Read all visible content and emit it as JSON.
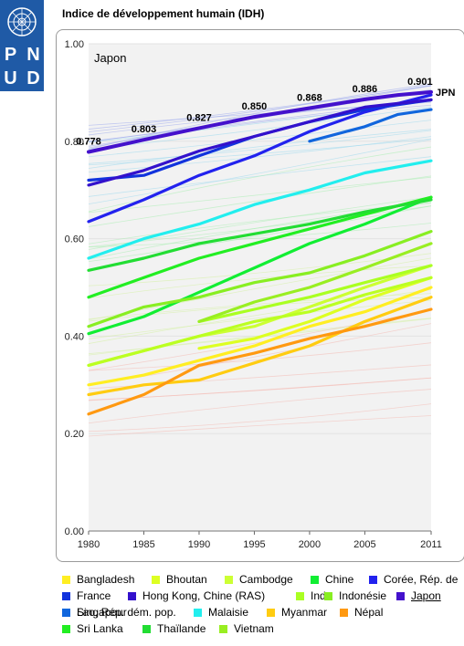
{
  "header": {
    "logo_letters": [
      "P",
      "N",
      "U",
      "D"
    ],
    "title": "Indice de développement humain (IDH)"
  },
  "chart_data": {
    "type": "line",
    "panel_label": "Japon",
    "ylim": [
      0,
      1
    ],
    "xlim": [
      1980,
      2011
    ],
    "x_ticks": [
      "1980",
      "1985",
      "1990",
      "1995",
      "2000",
      "2005",
      "2011"
    ],
    "y_ticks": [
      "0.00",
      "0.20",
      "0.40",
      "0.60",
      "0.80",
      "1.00"
    ],
    "highlight": {
      "series": "Japon",
      "end_label": "JPN",
      "point_labels": [
        {
          "x": 1980,
          "y": 0.778,
          "text": "0.778"
        },
        {
          "x": 1985,
          "y": 0.803,
          "text": "0.803"
        },
        {
          "x": 1990,
          "y": 0.827,
          "text": "0.827"
        },
        {
          "x": 1995,
          "y": 0.85,
          "text": "0.850"
        },
        {
          "x": 2000,
          "y": 0.868,
          "text": "0.868"
        },
        {
          "x": 2005,
          "y": 0.886,
          "text": "0.886"
        },
        {
          "x": 2010,
          "y": 0.901,
          "text": "0.901"
        }
      ]
    },
    "series": [
      {
        "name": "Bangladesh",
        "color": "#ffee22",
        "points": [
          [
            1980,
            0.3
          ],
          [
            1985,
            0.32
          ],
          [
            1990,
            0.35
          ],
          [
            1995,
            0.38
          ],
          [
            2000,
            0.42
          ],
          [
            2005,
            0.45
          ],
          [
            2011,
            0.5
          ]
        ]
      },
      {
        "name": "Bhoutan",
        "color": "#ddff22",
        "points": [
          [
            1990,
            0.375
          ],
          [
            1995,
            0.395
          ],
          [
            2000,
            0.43
          ],
          [
            2005,
            0.475
          ],
          [
            2011,
            0.52
          ]
        ]
      },
      {
        "name": "Cambodge",
        "color": "#ccff33",
        "points": [
          [
            1980,
            0.34
          ],
          [
            1985,
            0.37
          ],
          [
            1990,
            0.4
          ],
          [
            1995,
            0.42
          ],
          [
            2000,
            0.46
          ],
          [
            2005,
            0.5
          ],
          [
            2011,
            0.545
          ]
        ]
      },
      {
        "name": "Chine",
        "color": "#11ee33",
        "points": [
          [
            1980,
            0.405
          ],
          [
            1985,
            0.44
          ],
          [
            1990,
            0.49
          ],
          [
            1995,
            0.54
          ],
          [
            2000,
            0.59
          ],
          [
            2005,
            0.63
          ],
          [
            2011,
            0.685
          ]
        ]
      },
      {
        "name": "Corée, Rép. de",
        "color": "#2222ee",
        "points": [
          [
            1980,
            0.635
          ],
          [
            1985,
            0.68
          ],
          [
            1990,
            0.73
          ],
          [
            1995,
            0.77
          ],
          [
            2000,
            0.82
          ],
          [
            2005,
            0.86
          ],
          [
            2011,
            0.895
          ]
        ]
      },
      {
        "name": "France",
        "color": "#1133dd",
        "points": [
          [
            1980,
            0.72
          ],
          [
            1985,
            0.73
          ],
          [
            1990,
            0.77
          ],
          [
            1995,
            0.81
          ],
          [
            2000,
            0.84
          ],
          [
            2005,
            0.865
          ],
          [
            2011,
            0.885
          ]
        ]
      },
      {
        "name": "Hong Kong, Chine (RAS)",
        "color": "#3311cc",
        "points": [
          [
            1980,
            0.71
          ],
          [
            1985,
            0.74
          ],
          [
            1990,
            0.78
          ],
          [
            1995,
            0.81
          ],
          [
            2000,
            0.84
          ],
          [
            2005,
            0.87
          ],
          [
            2011,
            0.885
          ]
        ]
      },
      {
        "name": "Inde",
        "color": "#aaff22",
        "points": [
          [
            1990,
            0.43
          ],
          [
            1995,
            0.455
          ],
          [
            2000,
            0.48
          ],
          [
            2005,
            0.51
          ],
          [
            2011,
            0.545
          ]
        ]
      },
      {
        "name": "Indonésie",
        "color": "#88ee22",
        "points": [
          [
            1980,
            0.42
          ],
          [
            1985,
            0.46
          ],
          [
            1990,
            0.48
          ],
          [
            1995,
            0.51
          ],
          [
            2000,
            0.53
          ],
          [
            2005,
            0.565
          ],
          [
            2011,
            0.615
          ]
        ]
      },
      {
        "name": "Japon",
        "color": "#4411cc",
        "points": [
          [
            1980,
            0.778
          ],
          [
            1985,
            0.803
          ],
          [
            1990,
            0.827
          ],
          [
            1995,
            0.85
          ],
          [
            2000,
            0.868
          ],
          [
            2005,
            0.886
          ],
          [
            2008,
            0.895
          ],
          [
            2011,
            0.901
          ]
        ]
      },
      {
        "name": "Lao, Rép. dém. pop.",
        "color": "#bbff22",
        "points": [
          [
            1980,
            0.34
          ],
          [
            1985,
            0.37
          ],
          [
            1990,
            0.4
          ],
          [
            1995,
            0.43
          ],
          [
            2000,
            0.45
          ],
          [
            2005,
            0.485
          ],
          [
            2011,
            0.52
          ]
        ]
      },
      {
        "name": "Malaisie",
        "color": "#22eeee",
        "points": [
          [
            1980,
            0.56
          ],
          [
            1985,
            0.6
          ],
          [
            1990,
            0.63
          ],
          [
            1995,
            0.67
          ],
          [
            2000,
            0.7
          ],
          [
            2005,
            0.735
          ],
          [
            2011,
            0.76
          ]
        ]
      },
      {
        "name": "Myanmar",
        "color": "#ffcc11",
        "points": [
          [
            1980,
            0.28
          ],
          [
            1985,
            0.3
          ],
          [
            1990,
            0.31
          ],
          [
            1995,
            0.345
          ],
          [
            2000,
            0.38
          ],
          [
            2005,
            0.43
          ],
          [
            2011,
            0.48
          ]
        ]
      },
      {
        "name": "Népal",
        "color": "#ff9911",
        "points": [
          [
            1980,
            0.24
          ],
          [
            1985,
            0.28
          ],
          [
            1990,
            0.34
          ],
          [
            1995,
            0.365
          ],
          [
            2000,
            0.395
          ],
          [
            2005,
            0.42
          ],
          [
            2011,
            0.455
          ]
        ]
      },
      {
        "name": "Singapour",
        "color": "#1166dd",
        "points": [
          [
            2000,
            0.8
          ],
          [
            2005,
            0.83
          ],
          [
            2008,
            0.855
          ],
          [
            2011,
            0.865
          ]
        ]
      },
      {
        "name": "Sri Lanka",
        "color": "#22ee22",
        "points": [
          [
            1980,
            0.48
          ],
          [
            1985,
            0.52
          ],
          [
            1990,
            0.56
          ],
          [
            1995,
            0.59
          ],
          [
            2000,
            0.62
          ],
          [
            2005,
            0.65
          ],
          [
            2011,
            0.685
          ]
        ]
      },
      {
        "name": "Thaïlande",
        "color": "#22dd33",
        "points": [
          [
            1980,
            0.535
          ],
          [
            1985,
            0.56
          ],
          [
            1990,
            0.59
          ],
          [
            1995,
            0.61
          ],
          [
            2000,
            0.63
          ],
          [
            2005,
            0.655
          ],
          [
            2011,
            0.68
          ]
        ]
      },
      {
        "name": "Vietnam",
        "color": "#99ee22",
        "points": [
          [
            1990,
            0.43
          ],
          [
            1995,
            0.47
          ],
          [
            2000,
            0.5
          ],
          [
            2005,
            0.54
          ],
          [
            2011,
            0.59
          ]
        ]
      }
    ]
  }
}
